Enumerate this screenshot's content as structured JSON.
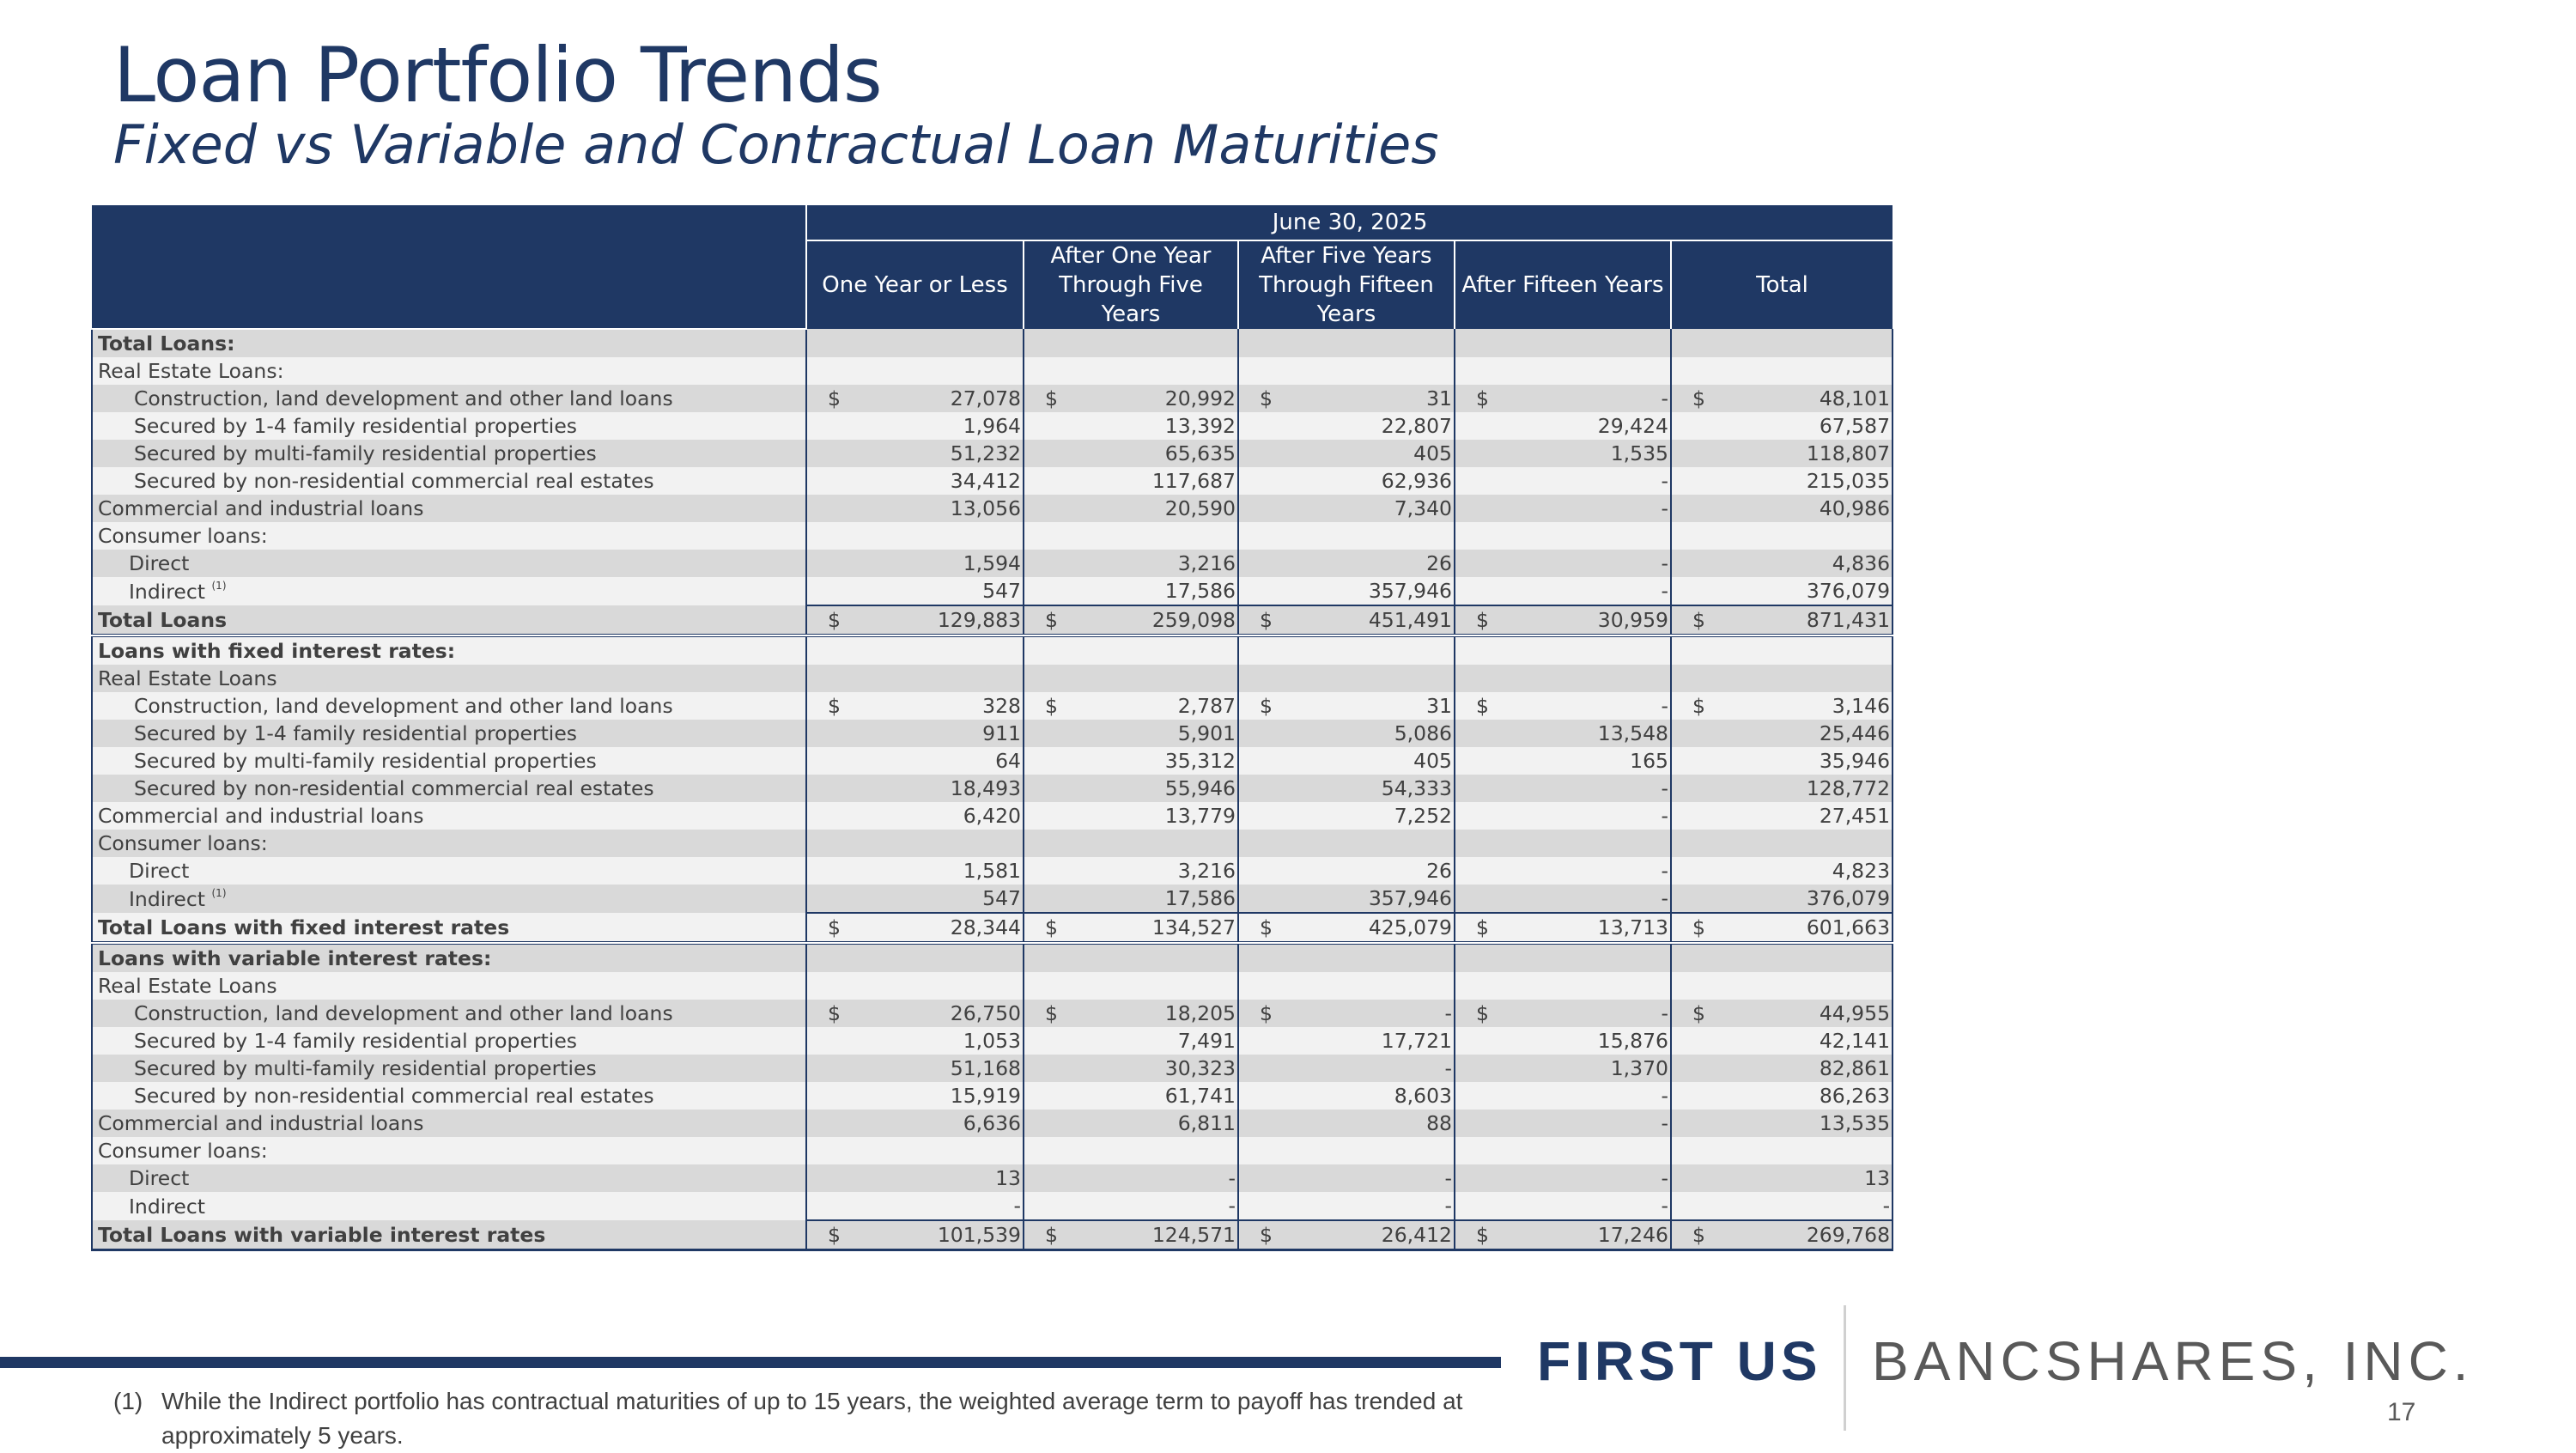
{
  "header": {
    "title": "Loan Portfolio Trends",
    "subtitle": "Fixed vs Variable and Contractual Loan Maturities"
  },
  "table": {
    "date_header": "June 30, 2025",
    "columns": [
      "One Year or Less",
      "After One Year Through Five Years",
      "After Five Years Through Fifteen Years",
      "After Fifteen Years",
      "Total"
    ],
    "rows": [
      {
        "label": "Total Loans:",
        "bold": true,
        "indent": 0,
        "values": [],
        "dollar": false,
        "total": false,
        "shade": true
      },
      {
        "label": "Real Estate Loans:",
        "bold": false,
        "indent": 0,
        "values": [],
        "dollar": false,
        "total": false,
        "shade": false
      },
      {
        "label": "Construction, land development and other land loans",
        "indent": 1,
        "values": [
          "27,078",
          "20,992",
          "31",
          "-",
          "48,101"
        ],
        "dollar": true,
        "shade": true
      },
      {
        "label": "Secured by 1-4 family residential properties",
        "indent": 1,
        "values": [
          "1,964",
          "13,392",
          "22,807",
          "29,424",
          "67,587"
        ],
        "shade": false
      },
      {
        "label": "Secured by multi-family residential properties",
        "indent": 1,
        "values": [
          "51,232",
          "65,635",
          "405",
          "1,535",
          "118,807"
        ],
        "shade": true
      },
      {
        "label": "Secured by non-residential commercial real estates",
        "indent": 1,
        "values": [
          "34,412",
          "117,687",
          "62,936",
          "-",
          "215,035"
        ],
        "shade": false
      },
      {
        "label": "Commercial and industrial loans",
        "indent": 0,
        "values": [
          "13,056",
          "20,590",
          "7,340",
          "-",
          "40,986"
        ],
        "shade": true
      },
      {
        "label": "Consumer loans:",
        "indent": 0,
        "values": [],
        "shade": false
      },
      {
        "label": "Direct",
        "indent": 2,
        "values": [
          "1,594",
          "3,216",
          "26",
          "-",
          "4,836"
        ],
        "shade": true
      },
      {
        "label": "Indirect",
        "sup": "(1)",
        "indent": 2,
        "values": [
          "547",
          "17,586",
          "357,946",
          "-",
          "376,079"
        ],
        "shade": false
      },
      {
        "label": "Total Loans",
        "bold": true,
        "indent": 0,
        "values": [
          "129,883",
          "259,098",
          "451,491",
          "30,959",
          "871,431"
        ],
        "dollar": true,
        "total": true,
        "shade": true
      },
      {
        "label": "Loans with fixed interest rates:",
        "bold": true,
        "indent": 0,
        "values": [],
        "shade": false,
        "section": true
      },
      {
        "label": "Real Estate Loans",
        "indent": 0,
        "values": [],
        "shade": true
      },
      {
        "label": "Construction, land development and other land loans",
        "indent": 1,
        "values": [
          "328",
          "2,787",
          "31",
          "-",
          "3,146"
        ],
        "dollar": true,
        "shade": false
      },
      {
        "label": "Secured by 1-4 family residential properties",
        "indent": 1,
        "values": [
          "911",
          "5,901",
          "5,086",
          "13,548",
          "25,446"
        ],
        "shade": true
      },
      {
        "label": "Secured by multi-family residential properties",
        "indent": 1,
        "values": [
          "64",
          "35,312",
          "405",
          "165",
          "35,946"
        ],
        "shade": false
      },
      {
        "label": "Secured by non-residential commercial real estates",
        "indent": 1,
        "values": [
          "18,493",
          "55,946",
          "54,333",
          "-",
          "128,772"
        ],
        "shade": true
      },
      {
        "label": "Commercial and industrial loans",
        "indent": 0,
        "values": [
          "6,420",
          "13,779",
          "7,252",
          "-",
          "27,451"
        ],
        "shade": false
      },
      {
        "label": "Consumer loans:",
        "indent": 0,
        "values": [],
        "shade": true
      },
      {
        "label": "Direct",
        "indent": 2,
        "values": [
          "1,581",
          "3,216",
          "26",
          "-",
          "4,823"
        ],
        "shade": false
      },
      {
        "label": "Indirect",
        "sup": "(1)",
        "indent": 2,
        "values": [
          "547",
          "17,586",
          "357,946",
          "-",
          "376,079"
        ],
        "shade": true
      },
      {
        "label": "Total Loans with fixed interest rates",
        "bold": true,
        "indent": 0,
        "values": [
          "28,344",
          "134,527",
          "425,079",
          "13,713",
          "601,663"
        ],
        "dollar": true,
        "total": true,
        "shade": false
      },
      {
        "label": "Loans with variable interest rates:",
        "bold": true,
        "indent": 0,
        "values": [],
        "shade": true,
        "section": true
      },
      {
        "label": "Real Estate Loans",
        "indent": 0,
        "values": [],
        "shade": false
      },
      {
        "label": "Construction, land development and other land loans",
        "indent": 1,
        "values": [
          "26,750",
          "18,205",
          "-",
          "-",
          "44,955"
        ],
        "dollar": true,
        "shade": true
      },
      {
        "label": "Secured by 1-4 family residential properties",
        "indent": 1,
        "values": [
          "1,053",
          "7,491",
          "17,721",
          "15,876",
          "42,141"
        ],
        "shade": false
      },
      {
        "label": "Secured by multi-family residential properties",
        "indent": 1,
        "values": [
          "51,168",
          "30,323",
          "-",
          "1,370",
          "82,861"
        ],
        "shade": true
      },
      {
        "label": "Secured by non-residential commercial real estates",
        "indent": 1,
        "values": [
          "15,919",
          "61,741",
          "8,603",
          "-",
          "86,263"
        ],
        "shade": false
      },
      {
        "label": "Commercial and industrial loans",
        "indent": 0,
        "values": [
          "6,636",
          "6,811",
          "88",
          "-",
          "13,535"
        ],
        "shade": true
      },
      {
        "label": "Consumer loans:",
        "indent": 0,
        "values": [],
        "shade": false
      },
      {
        "label": "Direct",
        "indent": 2,
        "values": [
          "13",
          "-",
          "-",
          "-",
          "13"
        ],
        "shade": true
      },
      {
        "label": "Indirect",
        "indent": 2,
        "values": [
          "-",
          "-",
          "-",
          "-",
          "-"
        ],
        "shade": false
      },
      {
        "label": "Total Loans with variable interest rates",
        "bold": true,
        "indent": 0,
        "values": [
          "101,539",
          "124,571",
          "26,412",
          "17,246",
          "269,768"
        ],
        "dollar": true,
        "total": true,
        "shade": true,
        "last": true
      }
    ],
    "currency_symbol": "$"
  },
  "logo": {
    "left_text": "FIRST US",
    "right_text": "BANCSHARES, INC."
  },
  "colors": {
    "navy": "#1f3864",
    "row_shade": "#d9d9d9",
    "row_plain": "#f2f2f2"
  },
  "footnote": {
    "marker": "(1)",
    "text": "While the Indirect portfolio has contractual maturities of up to 15 years, the weighted average term to payoff has trended at approximately 5 years."
  },
  "page_number": "17"
}
